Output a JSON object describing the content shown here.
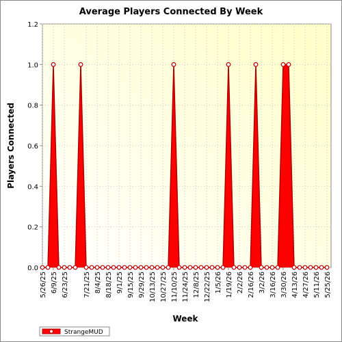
{
  "chart_data": {
    "type": "area",
    "title": "Average Players Connected By Week",
    "x_label": "Week",
    "y_label": "Players Connected",
    "categories": [
      "5/26/25",
      null,
      "6/9/25",
      null,
      "6/23/25",
      null,
      null,
      null,
      "7/21/25",
      null,
      "8/4/25",
      null,
      "8/18/25",
      null,
      "9/1/25",
      null,
      "9/15/25",
      null,
      "9/29/25",
      null,
      "10/13/25",
      null,
      "10/27/25",
      null,
      "11/10/25",
      null,
      "11/24/25",
      null,
      "12/8/25",
      null,
      "12/22/25",
      null,
      "1/5/26",
      null,
      "1/19/26",
      null,
      "2/2/26",
      null,
      "2/16/26",
      null,
      "3/2/26",
      null,
      "3/16/26",
      null,
      "3/30/26",
      null,
      "4/13/26",
      null,
      "4/27/26",
      null,
      "5/11/26",
      null,
      "5/25/26"
    ],
    "series": [
      {
        "name": "StrangeMUD",
        "color": "#ff0000",
        "values": [
          0,
          0,
          1,
          0,
          0,
          0,
          0,
          1,
          0,
          0,
          0,
          0,
          0,
          0,
          0,
          0,
          0,
          0,
          0,
          0,
          0,
          0,
          0,
          0,
          1,
          0,
          0,
          0,
          0,
          0,
          0,
          0,
          0,
          0,
          1,
          0,
          0,
          0,
          0,
          1,
          0,
          0,
          0,
          0,
          1,
          1,
          0,
          0,
          0,
          0,
          0,
          0,
          0
        ]
      }
    ],
    "ylim": [
      0,
      1.2
    ],
    "yticks": [
      {
        "value": 0,
        "label": "0.0"
      },
      0.2,
      0.4,
      0.6,
      0.8,
      {
        "value": 1,
        "label": "1.0"
      },
      1.2
    ],
    "grid": true,
    "legend": "bottom-left"
  }
}
